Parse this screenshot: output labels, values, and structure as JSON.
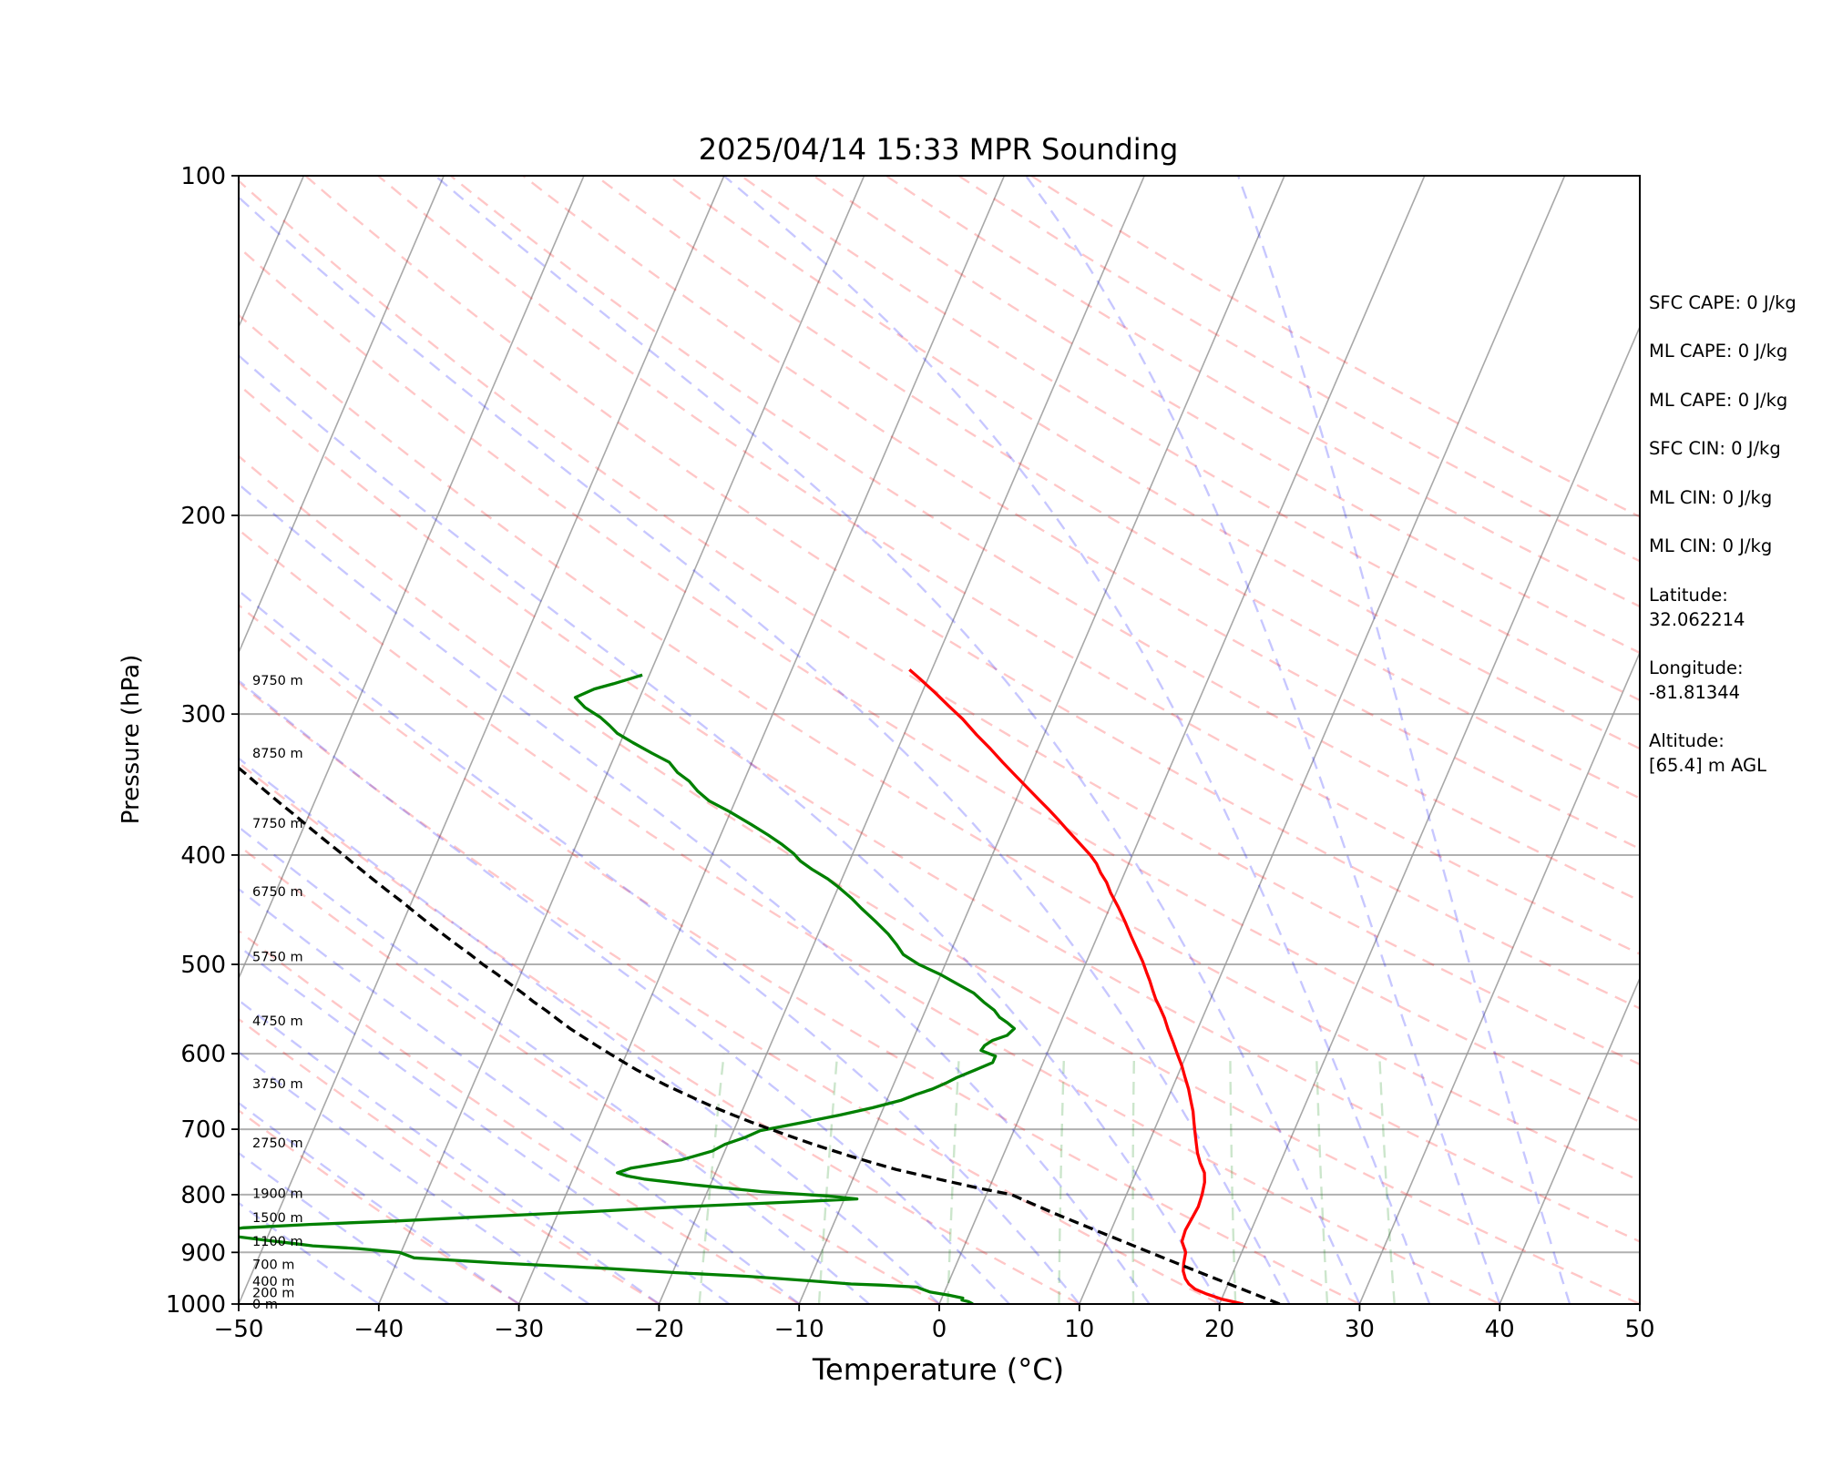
{
  "chart_data": {
    "type": "skew-t",
    "title": "2025/04/14 15:33 MPR Sounding",
    "xlabel": "Temperature (°C)",
    "ylabel": "Pressure (hPa)",
    "xlim": [
      -50,
      50
    ],
    "ylim": [
      1000,
      100
    ],
    "y_scale": "log",
    "x_ticks": [
      -50,
      -40,
      -30,
      -20,
      -10,
      0,
      10,
      20,
      30,
      40,
      50
    ],
    "y_ticks": [
      100,
      200,
      300,
      400,
      500,
      600,
      700,
      800,
      900,
      1000
    ],
    "grid": "horizontal at pressure ticks",
    "height_labels": [
      {
        "label": "0 m",
        "p": 1000
      },
      {
        "label": "200 m",
        "p": 977
      },
      {
        "label": "400 m",
        "p": 955
      },
      {
        "label": "700 m",
        "p": 922
      },
      {
        "label": "1100 m",
        "p": 880
      },
      {
        "label": "1500 m",
        "p": 838
      },
      {
        "label": "1900 m",
        "p": 798
      },
      {
        "label": "2750 m",
        "p": 720
      },
      {
        "label": "3750 m",
        "p": 638
      },
      {
        "label": "4750 m",
        "p": 561
      },
      {
        "label": "5750 m",
        "p": 492
      },
      {
        "label": "6750 m",
        "p": 431
      },
      {
        "label": "7750 m",
        "p": 375
      },
      {
        "label": "8750 m",
        "p": 325
      },
      {
        "label": "9750 m",
        "p": 280
      }
    ],
    "series": [
      {
        "role": "temperature",
        "color": "#ff0000",
        "points": [
          [
            21.7,
            1000
          ],
          [
            20.0,
            990
          ],
          [
            18.8,
            980
          ],
          [
            17.8,
            970
          ],
          [
            17.2,
            960
          ],
          [
            16.8,
            950
          ],
          [
            16.4,
            935
          ],
          [
            16.2,
            920
          ],
          [
            16.0,
            900
          ],
          [
            15.4,
            880
          ],
          [
            15.3,
            860
          ],
          [
            15.4,
            840
          ],
          [
            15.5,
            820
          ],
          [
            15.4,
            800
          ],
          [
            15.2,
            780
          ],
          [
            14.9,
            765
          ],
          [
            14.3,
            750
          ],
          [
            13.8,
            735
          ],
          [
            13.4,
            720
          ],
          [
            13.0,
            705
          ],
          [
            12.6,
            690
          ],
          [
            12.2,
            675
          ],
          [
            11.7,
            660
          ],
          [
            11.2,
            645
          ],
          [
            10.6,
            630
          ],
          [
            10.0,
            615
          ],
          [
            9.3,
            600
          ],
          [
            8.6,
            585
          ],
          [
            7.9,
            571
          ],
          [
            7.3,
            558
          ],
          [
            6.7,
            547
          ],
          [
            6.1,
            537
          ],
          [
            5.6,
            527
          ],
          [
            5.1,
            517
          ],
          [
            4.6,
            508
          ],
          [
            4.0,
            497
          ],
          [
            3.3,
            486
          ],
          [
            2.4,
            472
          ],
          [
            1.5,
            458
          ],
          [
            0.6,
            445
          ],
          [
            -0.4,
            432
          ],
          [
            -1.0,
            423
          ],
          [
            -1.7,
            415
          ],
          [
            -2.3,
            407
          ],
          [
            -3.0,
            400
          ],
          [
            -4.2,
            390
          ],
          [
            -5.3,
            381
          ],
          [
            -6.4,
            372
          ],
          [
            -7.3,
            365
          ],
          [
            -8.4,
            357
          ],
          [
            -9.8,
            347
          ],
          [
            -10.8,
            340
          ],
          [
            -12.1,
            331
          ],
          [
            -13.4,
            322
          ],
          [
            -14.8,
            313
          ],
          [
            -16.3,
            303
          ],
          [
            -17.7,
            295
          ],
          [
            -19.1,
            287
          ],
          [
            -20.6,
            279
          ],
          [
            -21.6,
            274
          ]
        ]
      },
      {
        "role": "dewpoint",
        "color": "#008000",
        "points": [
          [
            2.4,
            1000
          ],
          [
            2.0,
            995
          ],
          [
            1.5,
            992
          ],
          [
            1.5,
            988
          ],
          [
            0.4,
            982
          ],
          [
            -1.0,
            976
          ],
          [
            -1.7,
            970
          ],
          [
            -2.1,
            966
          ],
          [
            -4.8,
            962
          ],
          [
            -6.9,
            960
          ],
          [
            -10.3,
            953
          ],
          [
            -14.5,
            945
          ],
          [
            -19.7,
            938
          ],
          [
            -24.7,
            930
          ],
          [
            -32.5,
            920
          ],
          [
            -38.9,
            910
          ],
          [
            -40.1,
            900
          ],
          [
            -43.2,
            893
          ],
          [
            -46.5,
            888
          ],
          [
            -47.5,
            885
          ],
          [
            -50.0,
            878
          ],
          [
            -53.4,
            868
          ],
          [
            -53.7,
            862
          ],
          [
            -52.0,
            856
          ],
          [
            -47.4,
            850
          ],
          [
            -41.1,
            844
          ],
          [
            -34.6,
            836
          ],
          [
            -27.5,
            828
          ],
          [
            -21.4,
            820
          ],
          [
            -13.5,
            812
          ],
          [
            -9.1,
            807
          ],
          [
            -11.3,
            802
          ],
          [
            -16.1,
            795
          ],
          [
            -21.2,
            784
          ],
          [
            -24.9,
            775
          ],
          [
            -26.2,
            770
          ],
          [
            -27.0,
            765
          ],
          [
            -26.2,
            758
          ],
          [
            -22.8,
            745
          ],
          [
            -20.9,
            732
          ],
          [
            -20.2,
            722
          ],
          [
            -19.0,
            712
          ],
          [
            -18.1,
            702
          ],
          [
            -15.2,
            690
          ],
          [
            -12.9,
            680
          ],
          [
            -10.8,
            670
          ],
          [
            -9.0,
            660
          ],
          [
            -8.1,
            652
          ],
          [
            -7.1,
            645
          ],
          [
            -6.3,
            637
          ],
          [
            -5.7,
            630
          ],
          [
            -4.6,
            620
          ],
          [
            -3.6,
            611
          ],
          [
            -3.6,
            603
          ],
          [
            -4.8,
            596
          ],
          [
            -4.7,
            590
          ],
          [
            -4.3,
            584
          ],
          [
            -3.4,
            578
          ],
          [
            -3.1,
            570
          ],
          [
            -3.8,
            563
          ],
          [
            -4.5,
            557
          ],
          [
            -5.1,
            549
          ],
          [
            -6.1,
            540
          ],
          [
            -7.1,
            530
          ],
          [
            -8.6,
            520
          ],
          [
            -10.1,
            510
          ],
          [
            -11.9,
            500
          ],
          [
            -13.3,
            490
          ],
          [
            -14.1,
            480
          ],
          [
            -15.0,
            470
          ],
          [
            -16.3,
            458
          ],
          [
            -17.7,
            446
          ],
          [
            -18.7,
            437
          ],
          [
            -20.0,
            427
          ],
          [
            -21.0,
            420
          ],
          [
            -22.4,
            412
          ],
          [
            -23.5,
            405
          ],
          [
            -24.2,
            399
          ],
          [
            -25.4,
            391
          ],
          [
            -26.6,
            384
          ],
          [
            -28.1,
            376
          ],
          [
            -30.1,
            366
          ],
          [
            -31.9,
            358
          ],
          [
            -33.0,
            351
          ],
          [
            -33.9,
            344
          ],
          [
            -35.0,
            338
          ],
          [
            -35.9,
            331
          ],
          [
            -37.4,
            325
          ],
          [
            -39.1,
            318
          ],
          [
            -40.5,
            312
          ],
          [
            -41.3,
            307
          ],
          [
            -42.2,
            302
          ],
          [
            -43.6,
            296
          ],
          [
            -44.6,
            290
          ],
          [
            -43.5,
            285
          ],
          [
            -42.3,
            282
          ],
          [
            -41.2,
            279
          ],
          [
            -40.5,
            277
          ]
        ]
      },
      {
        "role": "parcel",
        "color": "#000000",
        "style": "dashed",
        "points": [
          [
            24.3,
            1000
          ],
          [
            20.6,
            965
          ],
          [
            16.8,
            930
          ],
          [
            13.0,
            896
          ],
          [
            9.1,
            862
          ],
          [
            5.3,
            830
          ],
          [
            1.8,
            800
          ],
          [
            -0.6,
            790
          ],
          [
            -2.8,
            780
          ],
          [
            -5.0,
            770
          ],
          [
            -7.2,
            760
          ],
          [
            -9.0,
            750
          ],
          [
            -10.8,
            740
          ],
          [
            -12.5,
            730
          ],
          [
            -14.2,
            720
          ],
          [
            -15.8,
            710
          ],
          [
            -17.4,
            700
          ],
          [
            -19.0,
            690
          ],
          [
            -20.5,
            680
          ],
          [
            -22.0,
            670
          ],
          [
            -23.4,
            660
          ],
          [
            -24.8,
            650
          ],
          [
            -26.2,
            640
          ],
          [
            -27.5,
            630
          ],
          [
            -28.8,
            620
          ],
          [
            -30.0,
            610
          ],
          [
            -31.2,
            600
          ],
          [
            -32.4,
            590
          ],
          [
            -33.6,
            580
          ],
          [
            -34.8,
            570
          ],
          [
            -35.9,
            560
          ],
          [
            -37.0,
            550
          ],
          [
            -38.2,
            540
          ],
          [
            -39.3,
            530
          ],
          [
            -40.5,
            520
          ],
          [
            -41.7,
            510
          ],
          [
            -43.0,
            500
          ],
          [
            -44.2,
            490
          ],
          [
            -45.5,
            480
          ],
          [
            -46.8,
            470
          ],
          [
            -48.1,
            460
          ],
          [
            -49.4,
            450
          ],
          [
            -50.7,
            440
          ],
          [
            -52.1,
            430
          ],
          [
            -53.5,
            420
          ],
          [
            -54.9,
            410
          ],
          [
            -56.3,
            400
          ],
          [
            -57.8,
            390
          ],
          [
            -59.3,
            380
          ],
          [
            -60.8,
            370
          ],
          [
            -62.4,
            360
          ],
          [
            -64.0,
            350
          ],
          [
            -65.6,
            340
          ],
          [
            -67.3,
            330
          ],
          [
            -69.0,
            320
          ],
          [
            -70.7,
            310
          ],
          [
            -72.5,
            300
          ],
          [
            -74.3,
            290
          ],
          [
            -76.2,
            280
          ],
          [
            -76.6,
            278
          ],
          [
            -75.8,
            277
          ]
        ]
      }
    ],
    "background_lines": {
      "isotherms": {
        "color": "#999999"
      },
      "dry_adiabats": {
        "color": "#ff0000"
      },
      "moist_adiabats": {
        "color": "#0000ff"
      },
      "mixing_ratio": {
        "color": "#008000"
      }
    }
  },
  "side_panel": [
    {
      "key": "sfc_cape",
      "lines": [
        "SFC CAPE: 0 J/kg"
      ]
    },
    {
      "key": "ml_cape_1",
      "lines": [
        "ML CAPE: 0 J/kg"
      ]
    },
    {
      "key": "ml_cape_2",
      "lines": [
        "ML CAPE: 0 J/kg"
      ]
    },
    {
      "key": "sfc_cin",
      "lines": [
        "SFC CIN: 0 J/kg"
      ]
    },
    {
      "key": "ml_cin_1",
      "lines": [
        "ML CIN: 0 J/kg"
      ]
    },
    {
      "key": "ml_cin_2",
      "lines": [
        "ML CIN: 0 J/kg"
      ]
    },
    {
      "key": "latitude",
      "lines": [
        "Latitude:",
        "32.062214"
      ]
    },
    {
      "key": "longitude",
      "lines": [
        "Longitude:",
        "-81.81344"
      ]
    },
    {
      "key": "altitude",
      "lines": [
        "Altitude:",
        "[65.4] m AGL"
      ]
    }
  ]
}
